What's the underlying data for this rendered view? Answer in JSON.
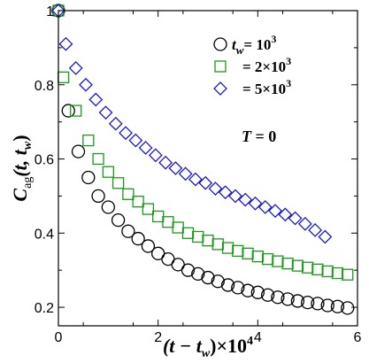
{
  "chart_data": {
    "type": "scatter",
    "xlabel": "(t − tw)×10⁴",
    "ylabel": "Cag(t, tw)",
    "xlim": [
      0,
      6
    ],
    "ylim": [
      0.15,
      1.0
    ],
    "xticks": [
      "0",
      "2",
      "4",
      "6"
    ],
    "yticks": [
      "0.2",
      "0.4",
      "0.6",
      "0.8",
      "1"
    ],
    "xtick_values": [
      0,
      2,
      4,
      6
    ],
    "ytick_values": [
      0.2,
      0.4,
      0.6,
      0.8,
      1.0
    ],
    "annotation": "T = 0",
    "legend_position": "top-right",
    "series": [
      {
        "name": "tw = 10³",
        "legend_label": "t_w = 10^3",
        "marker": "circle",
        "color": "#000000",
        "x": [
          0,
          0.2,
          0.4,
          0.6,
          0.8,
          1.0,
          1.2,
          1.4,
          1.6,
          1.8,
          2.0,
          2.2,
          2.4,
          2.6,
          2.8,
          3.0,
          3.2,
          3.4,
          3.6,
          3.8,
          4.0,
          4.2,
          4.4,
          4.6,
          4.8,
          5.0,
          5.2,
          5.4,
          5.6,
          5.8
        ],
        "y": [
          1.0,
          0.73,
          0.62,
          0.55,
          0.5,
          0.47,
          0.435,
          0.405,
          0.385,
          0.365,
          0.345,
          0.33,
          0.315,
          0.3,
          0.29,
          0.28,
          0.27,
          0.26,
          0.253,
          0.245,
          0.24,
          0.233,
          0.227,
          0.222,
          0.217,
          0.213,
          0.21,
          0.205,
          0.202,
          0.198
        ]
      },
      {
        "name": "tw = 2×10³",
        "legend_label": "= 2×10^3",
        "marker": "square",
        "color": "#1a9a1a",
        "x": [
          0,
          0.1,
          0.35,
          0.6,
          0.8,
          1.0,
          1.2,
          1.4,
          1.6,
          1.8,
          2.0,
          2.2,
          2.4,
          2.6,
          2.8,
          3.0,
          3.2,
          3.4,
          3.6,
          3.8,
          4.0,
          4.2,
          4.4,
          4.6,
          4.8,
          5.0,
          5.2,
          5.4,
          5.6,
          5.8
        ],
        "y": [
          1.0,
          0.82,
          0.73,
          0.65,
          0.6,
          0.565,
          0.535,
          0.505,
          0.485,
          0.465,
          0.445,
          0.43,
          0.415,
          0.4,
          0.39,
          0.38,
          0.37,
          0.36,
          0.352,
          0.345,
          0.337,
          0.33,
          0.324,
          0.318,
          0.312,
          0.307,
          0.302,
          0.297,
          0.292,
          0.288
        ]
      },
      {
        "name": "tw = 5×10³",
        "legend_label": "= 5×10^3",
        "marker": "diamond",
        "color": "#1a1acc",
        "x": [
          0,
          0.15,
          0.35,
          0.55,
          0.75,
          0.95,
          1.15,
          1.35,
          1.55,
          1.75,
          1.95,
          2.15,
          2.35,
          2.55,
          2.75,
          2.95,
          3.15,
          3.35,
          3.55,
          3.75,
          3.95,
          4.15,
          4.35,
          4.55,
          4.75,
          4.95,
          5.15,
          5.35
        ],
        "y": [
          1.0,
          0.91,
          0.845,
          0.8,
          0.76,
          0.725,
          0.695,
          0.67,
          0.65,
          0.63,
          0.61,
          0.59,
          0.575,
          0.56,
          0.545,
          0.535,
          0.52,
          0.51,
          0.5,
          0.49,
          0.48,
          0.47,
          0.46,
          0.45,
          0.44,
          0.425,
          0.408,
          0.39
        ]
      }
    ]
  }
}
